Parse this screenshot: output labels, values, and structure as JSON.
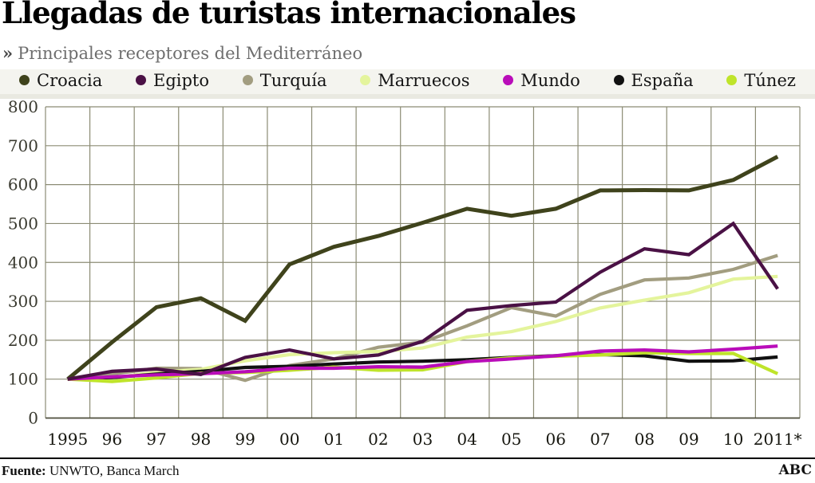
{
  "header": {
    "title": "Llegadas de turistas internacionales",
    "subtitle_marker": "»",
    "subtitle": "Principales receptores del Mediterráneo"
  },
  "legend": {
    "position": "top",
    "items": [
      {
        "label": "Croacia",
        "color": "#3f431c"
      },
      {
        "label": "Egipto",
        "color": "#4a1145"
      },
      {
        "label": "Turquía",
        "color": "#a29d80"
      },
      {
        "label": "Marruecos",
        "color": "#e4f49c"
      },
      {
        "label": "Mundo",
        "color": "#b90cb9"
      },
      {
        "label": "España",
        "color": "#111111"
      },
      {
        "label": "Túnez",
        "color": "#bfe42a"
      }
    ]
  },
  "chart_data": {
    "type": "line",
    "title": "Llegadas de turistas internacionales",
    "subtitle": "Principales receptores del Mediterráneo",
    "x": [
      "1995",
      "96",
      "97",
      "98",
      "99",
      "00",
      "01",
      "02",
      "03",
      "04",
      "05",
      "06",
      "07",
      "08",
      "09",
      "10",
      "2011*"
    ],
    "xlabel": "",
    "ylabel": "",
    "ylim": [
      0,
      800
    ],
    "yticks": [
      0,
      100,
      200,
      300,
      400,
      500,
      600,
      700,
      800
    ],
    "grid": true,
    "legend_position": "top",
    "series": [
      {
        "name": "Croacia",
        "color": "#3f431c",
        "values": [
          100,
          195,
          285,
          308,
          250,
          395,
          440,
          468,
          502,
          538,
          520,
          538,
          585,
          586,
          585,
          612,
          672
        ]
      },
      {
        "name": "Egipto",
        "color": "#4a1145",
        "values": [
          100,
          120,
          126,
          112,
          156,
          175,
          152,
          162,
          197,
          277,
          289,
          298,
          375,
          435,
          420,
          500,
          332
        ]
      },
      {
        "name": "Turquía",
        "color": "#a29d80",
        "values": [
          100,
          113,
          128,
          127,
          97,
          135,
          152,
          182,
          195,
          237,
          284,
          262,
          318,
          355,
          360,
          382,
          418
        ]
      },
      {
        "name": "Marruecos",
        "color": "#e4f49c",
        "values": [
          100,
          103,
          118,
          125,
          147,
          163,
          168,
          171,
          180,
          208,
          222,
          248,
          283,
          303,
          322,
          357,
          364
        ]
      },
      {
        "name": "Mundo",
        "color": "#b90cb9",
        "values": [
          100,
          106,
          111,
          114,
          119,
          128,
          128,
          132,
          131,
          145,
          152,
          160,
          172,
          175,
          170,
          177,
          185
        ]
      },
      {
        "name": "España",
        "color": "#111111",
        "values": [
          100,
          104,
          113,
          120,
          130,
          133,
          139,
          144,
          146,
          150,
          156,
          160,
          163,
          160,
          146,
          147,
          157
        ]
      },
      {
        "name": "Túnez",
        "color": "#bfe42a",
        "values": [
          100,
          94,
          103,
          115,
          117,
          123,
          131,
          123,
          124,
          145,
          155,
          159,
          162,
          168,
          166,
          166,
          114
        ]
      }
    ],
    "draw_order": [
      "Croacia",
      "Turquía",
      "Marruecos",
      "España",
      "Túnez",
      "Mundo",
      "Egipto"
    ]
  },
  "footer": {
    "source_label": "Fuente:",
    "source_text": " UNWTO, Banca March",
    "brand": "ABC"
  }
}
